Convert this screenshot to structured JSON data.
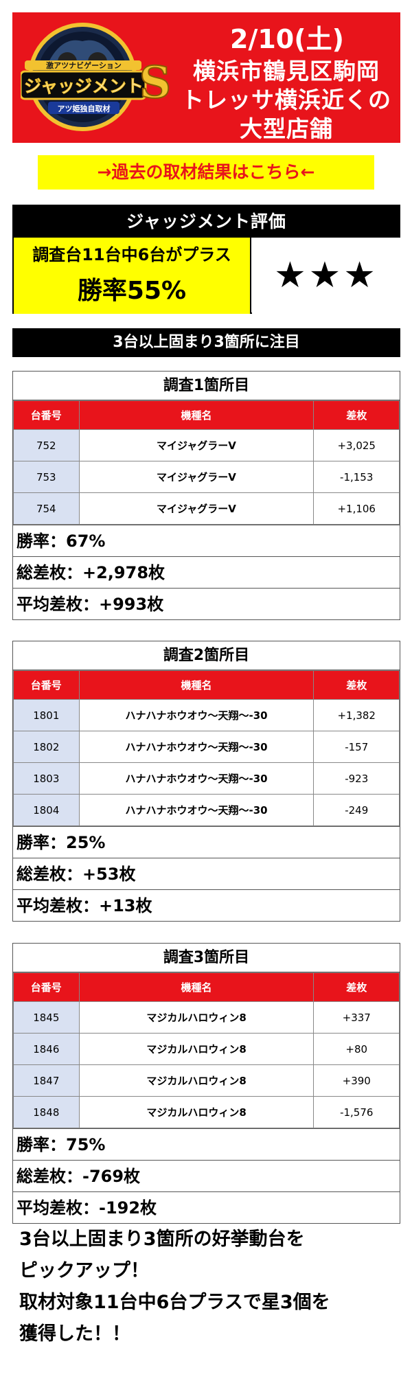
{
  "header": {
    "date": "2/10(土)",
    "line1": "横浜市鶴見区駒岡",
    "line2": "トレッサ横浜近くの",
    "line3": "大型店舗",
    "logo_top": "激アツナビゲーション",
    "logo_main": "ジャッジメント",
    "logo_letter": "S",
    "logo_bottom": "アツ姫独自取材"
  },
  "past_link": "→過去の取材結果はこちら←",
  "evaluation": {
    "title": "ジャッジメント評価",
    "summary": "調査台11台中6台がプラス",
    "win_rate": "勝率55%",
    "stars": "★★★"
  },
  "notice": "3台以上固まり3箇所に注目",
  "columns": [
    "台番号",
    "機種名",
    "差枚"
  ],
  "surveys": [
    {
      "title": "調査1箇所目",
      "rows": [
        {
          "num": "752",
          "model": "マイジャグラーV",
          "diff": "+3,025"
        },
        {
          "num": "753",
          "model": "マイジャグラーV",
          "diff": "-1,153"
        },
        {
          "num": "754",
          "model": "マイジャグラーV",
          "diff": "+1,106"
        }
      ],
      "win_rate": "勝率：67%",
      "total": "総差枚：+2,978枚",
      "average": "平均差枚：+993枚"
    },
    {
      "title": "調査2箇所目",
      "rows": [
        {
          "num": "1801",
          "model": "ハナハナホウオウ〜天翔〜‐30",
          "diff": "+1,382"
        },
        {
          "num": "1802",
          "model": "ハナハナホウオウ〜天翔〜‐30",
          "diff": "-157"
        },
        {
          "num": "1803",
          "model": "ハナハナホウオウ〜天翔〜‐30",
          "diff": "-923"
        },
        {
          "num": "1804",
          "model": "ハナハナホウオウ〜天翔〜‐30",
          "diff": "-249"
        }
      ],
      "win_rate": "勝率：25%",
      "total": "総差枚：+53枚",
      "average": "平均差枚：+13枚"
    },
    {
      "title": "調査3箇所目",
      "rows": [
        {
          "num": "1845",
          "model": "マジカルハロウィン8",
          "diff": "+337"
        },
        {
          "num": "1846",
          "model": "マジカルハロウィン8",
          "diff": "+80"
        },
        {
          "num": "1847",
          "model": "マジカルハロウィン8",
          "diff": "+390"
        },
        {
          "num": "1848",
          "model": "マジカルハロウィン8",
          "diff": "-1,576"
        }
      ],
      "win_rate": "勝率：75%",
      "total": "総差枚：-769枚",
      "average": "平均差枚：-192枚"
    }
  ],
  "footer": [
    "3台以上固まり3箇所の好挙動台を",
    "ピックアップ！",
    "取材対象11台中6台プラスで星3個を",
    "獲得した！！"
  ],
  "colors": {
    "banner_red": "#e8141b",
    "highlight_yellow": "#ffff00",
    "row_num_bg": "#d9e1f2",
    "logo_gold": "#f2c230"
  }
}
